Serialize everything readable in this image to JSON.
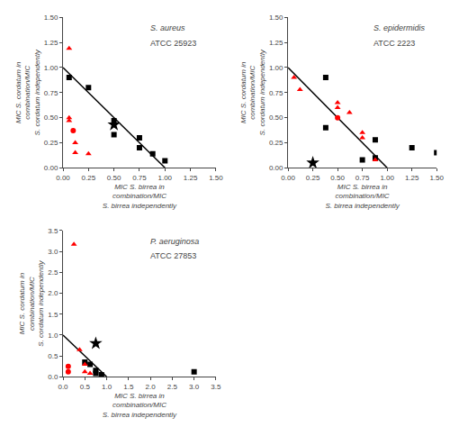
{
  "chart_data": [
    {
      "type": "scatter",
      "title": "S. aureus",
      "subtitle": "ATCC 25923",
      "xlabel": "MIC S. birrea in\ncombination/MIC\nS. birrea independently",
      "ylabel": "MIC S. cordatum in\ncombination/MIC\nS. cordatum independently",
      "xlim": [
        0,
        1.5
      ],
      "ylim": [
        0,
        1.5
      ],
      "xticks": [
        {
          "value": 0.0,
          "label": "0.00"
        },
        0.25,
        {
          "value": 0.5,
          "label": "0.50"
        },
        0.75,
        {
          "value": 1.0,
          "label": "1.00"
        },
        1.25,
        {
          "value": 1.5,
          "label": "1.50"
        }
      ],
      "yticks": [
        {
          "value": 0.0,
          "label": "0.00"
        },
        0.25,
        {
          "value": 0.5,
          "label": "0.50"
        },
        0.75,
        {
          "value": 1.0,
          "label": "1.00"
        },
        1.25,
        {
          "value": 1.5,
          "label": "1.50"
        }
      ],
      "grid": false,
      "series": [
        {
          "type": "line",
          "color": "black",
          "line_style": "solid",
          "x": [
            0.0,
            1.0
          ],
          "values": [
            1.0,
            0.0
          ]
        },
        {
          "type": "scatter",
          "marker": "square",
          "color": "black",
          "x": [
            0.06,
            0.25,
            0.5,
            0.5,
            0.75,
            0.75,
            0.88,
            1.0
          ],
          "values": [
            0.9,
            0.8,
            0.47,
            0.33,
            0.3,
            0.2,
            0.14,
            0.07
          ]
        },
        {
          "type": "scatter",
          "marker": "triangle",
          "color": "red",
          "x": [
            0.06,
            0.06,
            0.06,
            0.12,
            0.12,
            0.25
          ],
          "values": [
            1.19,
            0.5,
            0.47,
            0.25,
            0.15,
            0.14
          ]
        },
        {
          "type": "scatter",
          "marker": "circle",
          "color": "red",
          "x": [
            0.1
          ],
          "values": [
            0.37
          ]
        },
        {
          "type": "scatter",
          "marker": "star",
          "color": "black",
          "x": [
            0.5
          ],
          "values": [
            0.43
          ]
        }
      ]
    },
    {
      "type": "scatter",
      "title": "S. epidermidis",
      "subtitle": "ATCC 2223",
      "xlabel": "MIC S. birrea in\ncombination/MIC\nS. birrea independently",
      "ylabel": "MIC S. cordatum in\ncombination/MIC\nS. cordatum independently",
      "xlim": [
        0,
        1.5
      ],
      "ylim": [
        0,
        1.5
      ],
      "xticks": [
        {
          "value": 0.0,
          "label": "0.00"
        },
        0.25,
        {
          "value": 0.5,
          "label": "0.50"
        },
        0.75,
        {
          "value": 1.0,
          "label": "1.00"
        },
        1.25,
        {
          "value": 1.5,
          "label": "1.50"
        }
      ],
      "yticks": [
        {
          "value": 0.0,
          "label": "0.00"
        },
        0.25,
        {
          "value": 0.5,
          "label": "0.50"
        },
        0.75,
        {
          "value": 1.0,
          "label": "1.00"
        },
        1.25,
        {
          "value": 1.5,
          "label": "1.50"
        }
      ],
      "grid": false,
      "series": [
        {
          "type": "line",
          "color": "black",
          "line_style": "solid",
          "x": [
            0.0,
            1.0
          ],
          "values": [
            1.0,
            0.0
          ]
        },
        {
          "type": "scatter",
          "marker": "square",
          "color": "black",
          "x": [
            0.38,
            0.38,
            0.75,
            0.88,
            0.88,
            1.25,
            1.5
          ],
          "values": [
            0.9,
            0.4,
            0.08,
            0.28,
            0.1,
            0.2,
            0.15
          ]
        },
        {
          "type": "scatter",
          "marker": "triangle",
          "color": "red",
          "x": [
            0.06,
            0.12,
            0.5,
            0.5,
            0.62,
            0.75,
            0.75,
            0.88
          ],
          "values": [
            0.9,
            0.78,
            0.65,
            0.6,
            0.55,
            0.35,
            0.3,
            0.08
          ]
        },
        {
          "type": "scatter",
          "marker": "circle",
          "color": "red",
          "x": [
            0.5
          ],
          "values": [
            0.5
          ]
        },
        {
          "type": "scatter",
          "marker": "star",
          "color": "black",
          "x": [
            0.25
          ],
          "values": [
            0.05
          ]
        }
      ]
    },
    {
      "type": "scatter",
      "title": "P. aeruginosa",
      "subtitle": "ATCC 27853",
      "xlabel": "MIC S. birrea in\ncombination/MIC\nS. birrea independently",
      "ylabel": "MIC S. cordatum in\ncombination/MIC\nS. cordatum independently",
      "xlim": [
        0,
        3.5
      ],
      "ylim": [
        0,
        3.5
      ],
      "xticks": [
        {
          "value": 0.0,
          "label": "0.0"
        },
        0.5,
        {
          "value": 1.0,
          "label": "1.0"
        },
        1.5,
        {
          "value": 2.0,
          "label": "2.0"
        },
        2.5,
        {
          "value": 3.0,
          "label": "3.0"
        },
        3.5
      ],
      "yticks": [
        {
          "value": 0.0,
          "label": "0.0"
        },
        0.5,
        {
          "value": 1.0,
          "label": "1.0"
        },
        1.5,
        {
          "value": 2.0,
          "label": "2.0"
        },
        2.5,
        {
          "value": 3.0,
          "label": "3.0"
        },
        3.5
      ],
      "grid": false,
      "series": [
        {
          "type": "line",
          "color": "black",
          "line_style": "solid",
          "x": [
            0.0,
            1.0
          ],
          "values": [
            1.0,
            0.0
          ]
        },
        {
          "type": "scatter",
          "marker": "square",
          "color": "black",
          "x": [
            0.5,
            0.62,
            0.75,
            0.75,
            0.88,
            0.88,
            3.0
          ],
          "values": [
            0.35,
            0.3,
            0.15,
            0.08,
            0.05,
            0.03,
            0.12
          ]
        },
        {
          "type": "scatter",
          "marker": "triangle",
          "color": "red",
          "x": [
            0.25,
            0.38,
            0.5,
            0.5,
            0.62
          ],
          "values": [
            3.17,
            0.65,
            0.3,
            0.12,
            0.08
          ]
        },
        {
          "type": "scatter",
          "marker": "circle",
          "color": "red",
          "x": [
            0.12,
            0.12
          ],
          "values": [
            0.25,
            0.12
          ]
        },
        {
          "type": "scatter",
          "marker": "star",
          "color": "black",
          "x": [
            0.75
          ],
          "values": [
            0.8
          ]
        }
      ]
    }
  ]
}
